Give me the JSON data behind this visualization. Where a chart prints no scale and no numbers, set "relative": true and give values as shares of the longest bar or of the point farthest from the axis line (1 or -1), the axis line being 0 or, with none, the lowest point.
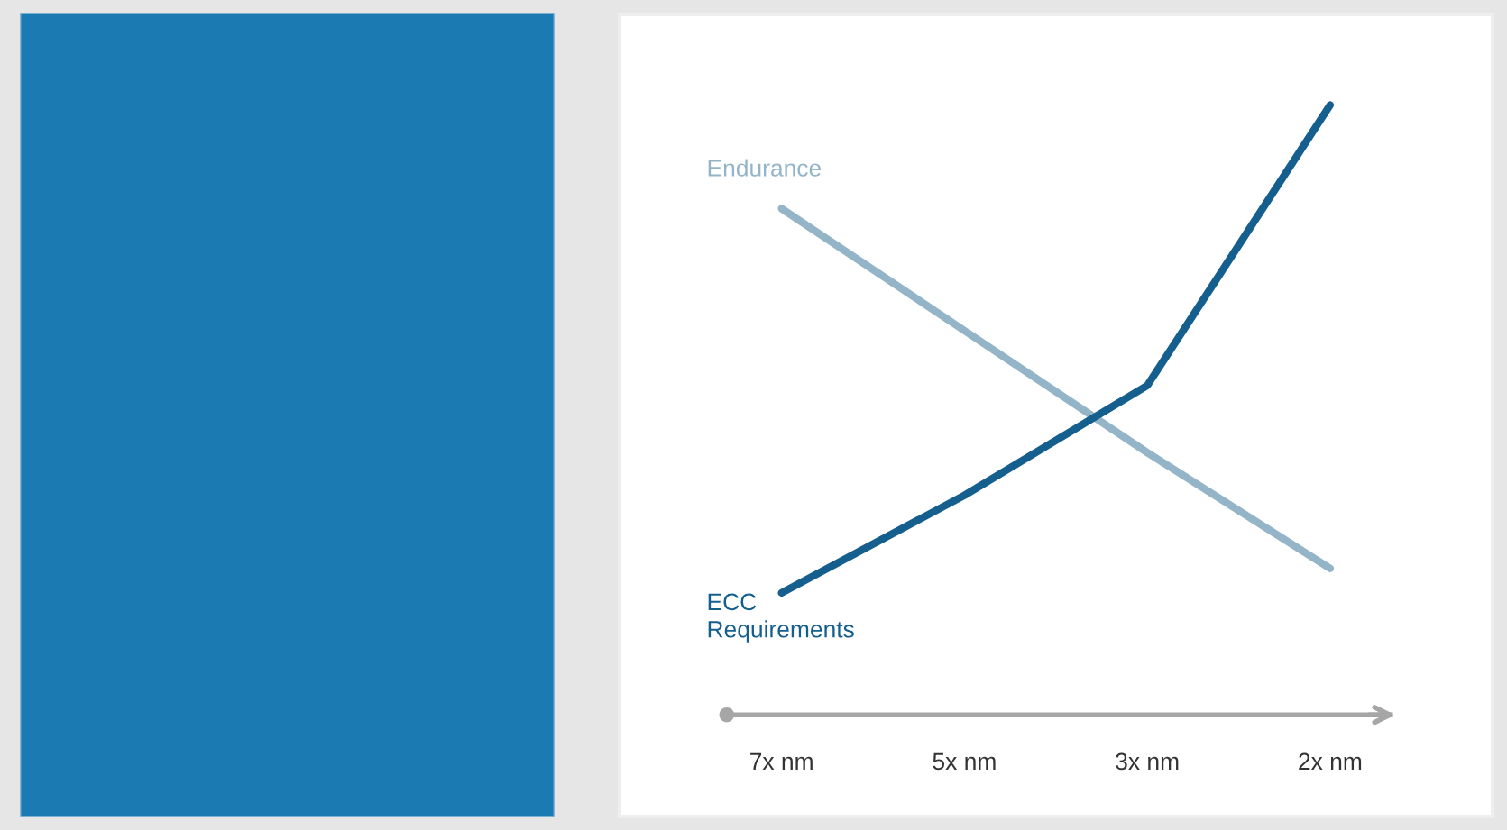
{
  "chart_data": {
    "type": "line",
    "relative": true,
    "categories": [
      "7x nm",
      "5x nm",
      "3x nm",
      "2x nm"
    ],
    "series": [
      {
        "name": "Endurance",
        "color": "#94b4c8",
        "values": [
          0.83,
          0.63,
          0.43,
          0.24
        ]
      },
      {
        "name": "ECC\nRequirements",
        "color": "#155f8e",
        "values": [
          0.2,
          0.36,
          0.54,
          1.0
        ]
      }
    ],
    "marker": "none",
    "line_style": "solid",
    "grid": false,
    "legend": false
  }
}
